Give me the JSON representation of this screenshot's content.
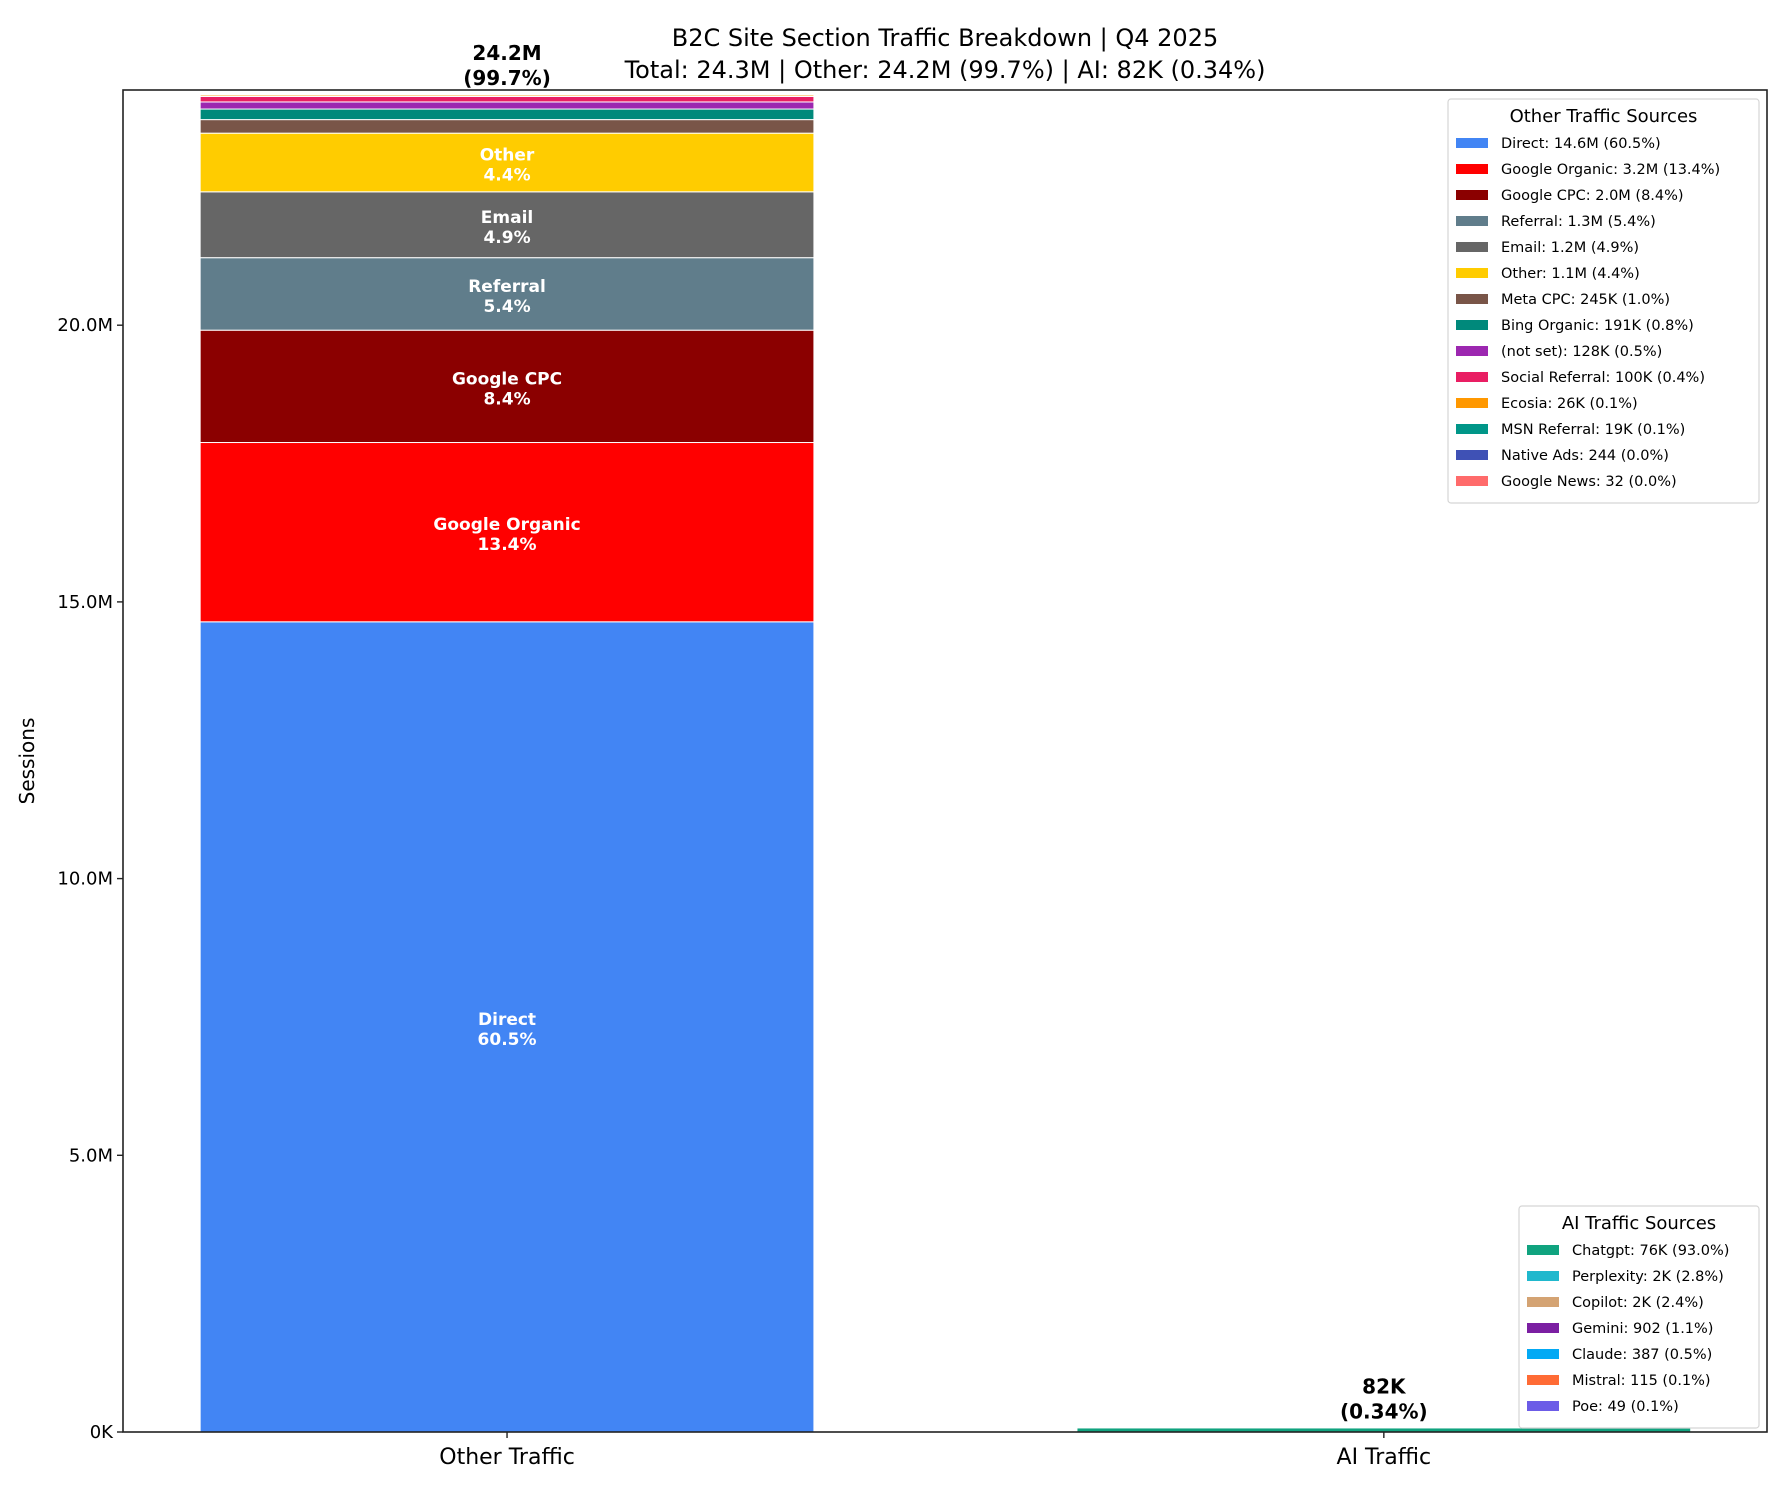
{
  "chart_data": {
    "type": "bar",
    "stacked": true,
    "title": "B2C Site Section Traffic Breakdown | Q4 2025",
    "subtitle": "Total: 24.3M | Other: 24.2M (99.7%) | AI: 82K (0.34%)",
    "xlabel": "",
    "ylabel": "Sessions",
    "categories": [
      "Other Traffic",
      "AI Traffic"
    ],
    "ylim": [
      0,
      24250000
    ],
    "yticks": [
      0,
      5000000,
      10000000,
      15000000,
      20000000
    ],
    "ytick_labels": [
      "0K",
      "5.0M",
      "10.0M",
      "15.0M",
      "20.0M"
    ],
    "grid": false,
    "bar_totals": [
      {
        "value": "24.2M",
        "pct": "(99.7%)"
      },
      {
        "value": "82K",
        "pct": "(0.34%)"
      }
    ],
    "other_segments": [
      {
        "name": "Direct",
        "value": 14640000,
        "pct": "60.5%",
        "legend": "Direct: 14.6M (60.5%)",
        "color": "#4285F4"
      },
      {
        "name": "Google Organic",
        "value": 3240000,
        "pct": "13.4%",
        "legend": "Google Organic: 3.2M (13.4%)",
        "color": "#FF0000"
      },
      {
        "name": "Google CPC",
        "value": 2030000,
        "pct": "8.4%",
        "legend": "Google CPC: 2.0M (8.4%)",
        "color": "#8B0000"
      },
      {
        "name": "Referral",
        "value": 1310000,
        "pct": "5.4%",
        "legend": "Referral: 1.3M (5.4%)",
        "color": "#607D8B"
      },
      {
        "name": "Email",
        "value": 1190000,
        "pct": "4.9%",
        "legend": "Email: 1.2M (4.9%)",
        "color": "#666666"
      },
      {
        "name": "Other",
        "value": 1060000,
        "pct": "4.4%",
        "legend": "Other: 1.1M (4.4%)",
        "color": "#FFCC00"
      },
      {
        "name": "Meta CPC",
        "value": 245000,
        "pct": "1.0%",
        "legend": "Meta CPC: 245K (1.0%)",
        "color": "#795548"
      },
      {
        "name": "Bing Organic",
        "value": 191000,
        "pct": "0.8%",
        "legend": "Bing Organic: 191K (0.8%)",
        "color": "#00897B"
      },
      {
        "name": "(not set)",
        "value": 128000,
        "pct": "0.5%",
        "legend": "(not set): 128K (0.5%)",
        "color": "#9C27B0"
      },
      {
        "name": "Social Referral",
        "value": 100000,
        "pct": "0.4%",
        "legend": "Social Referral: 100K (0.4%)",
        "color": "#E91E63"
      },
      {
        "name": "Ecosia",
        "value": 26000,
        "pct": "0.1%",
        "legend": "Ecosia: 26K (0.1%)",
        "color": "#FF9800"
      },
      {
        "name": "MSN Referral",
        "value": 19000,
        "pct": "0.1%",
        "legend": "MSN Referral: 19K (0.1%)",
        "color": "#009688"
      },
      {
        "name": "Native Ads",
        "value": 244,
        "pct": "0.0%",
        "legend": "Native Ads: 244 (0.0%)",
        "color": "#3F51B5"
      },
      {
        "name": "Google News",
        "value": 32,
        "pct": "0.0%",
        "legend": "Google News: 32 (0.0%)",
        "color": "#FF6B6B"
      }
    ],
    "ai_segments": [
      {
        "name": "Chatgpt",
        "value": 76000,
        "pct": "93.0%",
        "legend": "Chatgpt: 76K (93.0%)",
        "color": "#10A37F"
      },
      {
        "name": "Perplexity",
        "value": 2300,
        "pct": "2.8%",
        "legend": "Perplexity: 2K (2.8%)",
        "color": "#20B8CD"
      },
      {
        "name": "Copilot",
        "value": 1960,
        "pct": "2.4%",
        "legend": "Copilot: 2K (2.4%)",
        "color": "#D4A373"
      },
      {
        "name": "Gemini",
        "value": 902,
        "pct": "1.1%",
        "legend": "Gemini: 902 (1.1%)",
        "color": "#7B1FA2"
      },
      {
        "name": "Claude",
        "value": 387,
        "pct": "0.5%",
        "legend": "Claude: 387 (0.5%)",
        "color": "#03A9F4"
      },
      {
        "name": "Mistral",
        "value": 115,
        "pct": "0.1%",
        "legend": "Mistral: 115 (0.1%)",
        "color": "#FF6B35"
      },
      {
        "name": "Poe",
        "value": 49,
        "pct": "0.1%",
        "legend": "Poe: 49 (0.1%)",
        "color": "#6C5CE7"
      }
    ],
    "legends": [
      {
        "title": "Other Traffic Sources",
        "placement": "top-right"
      },
      {
        "title": "AI Traffic Sources",
        "placement": "bottom-right"
      }
    ]
  }
}
